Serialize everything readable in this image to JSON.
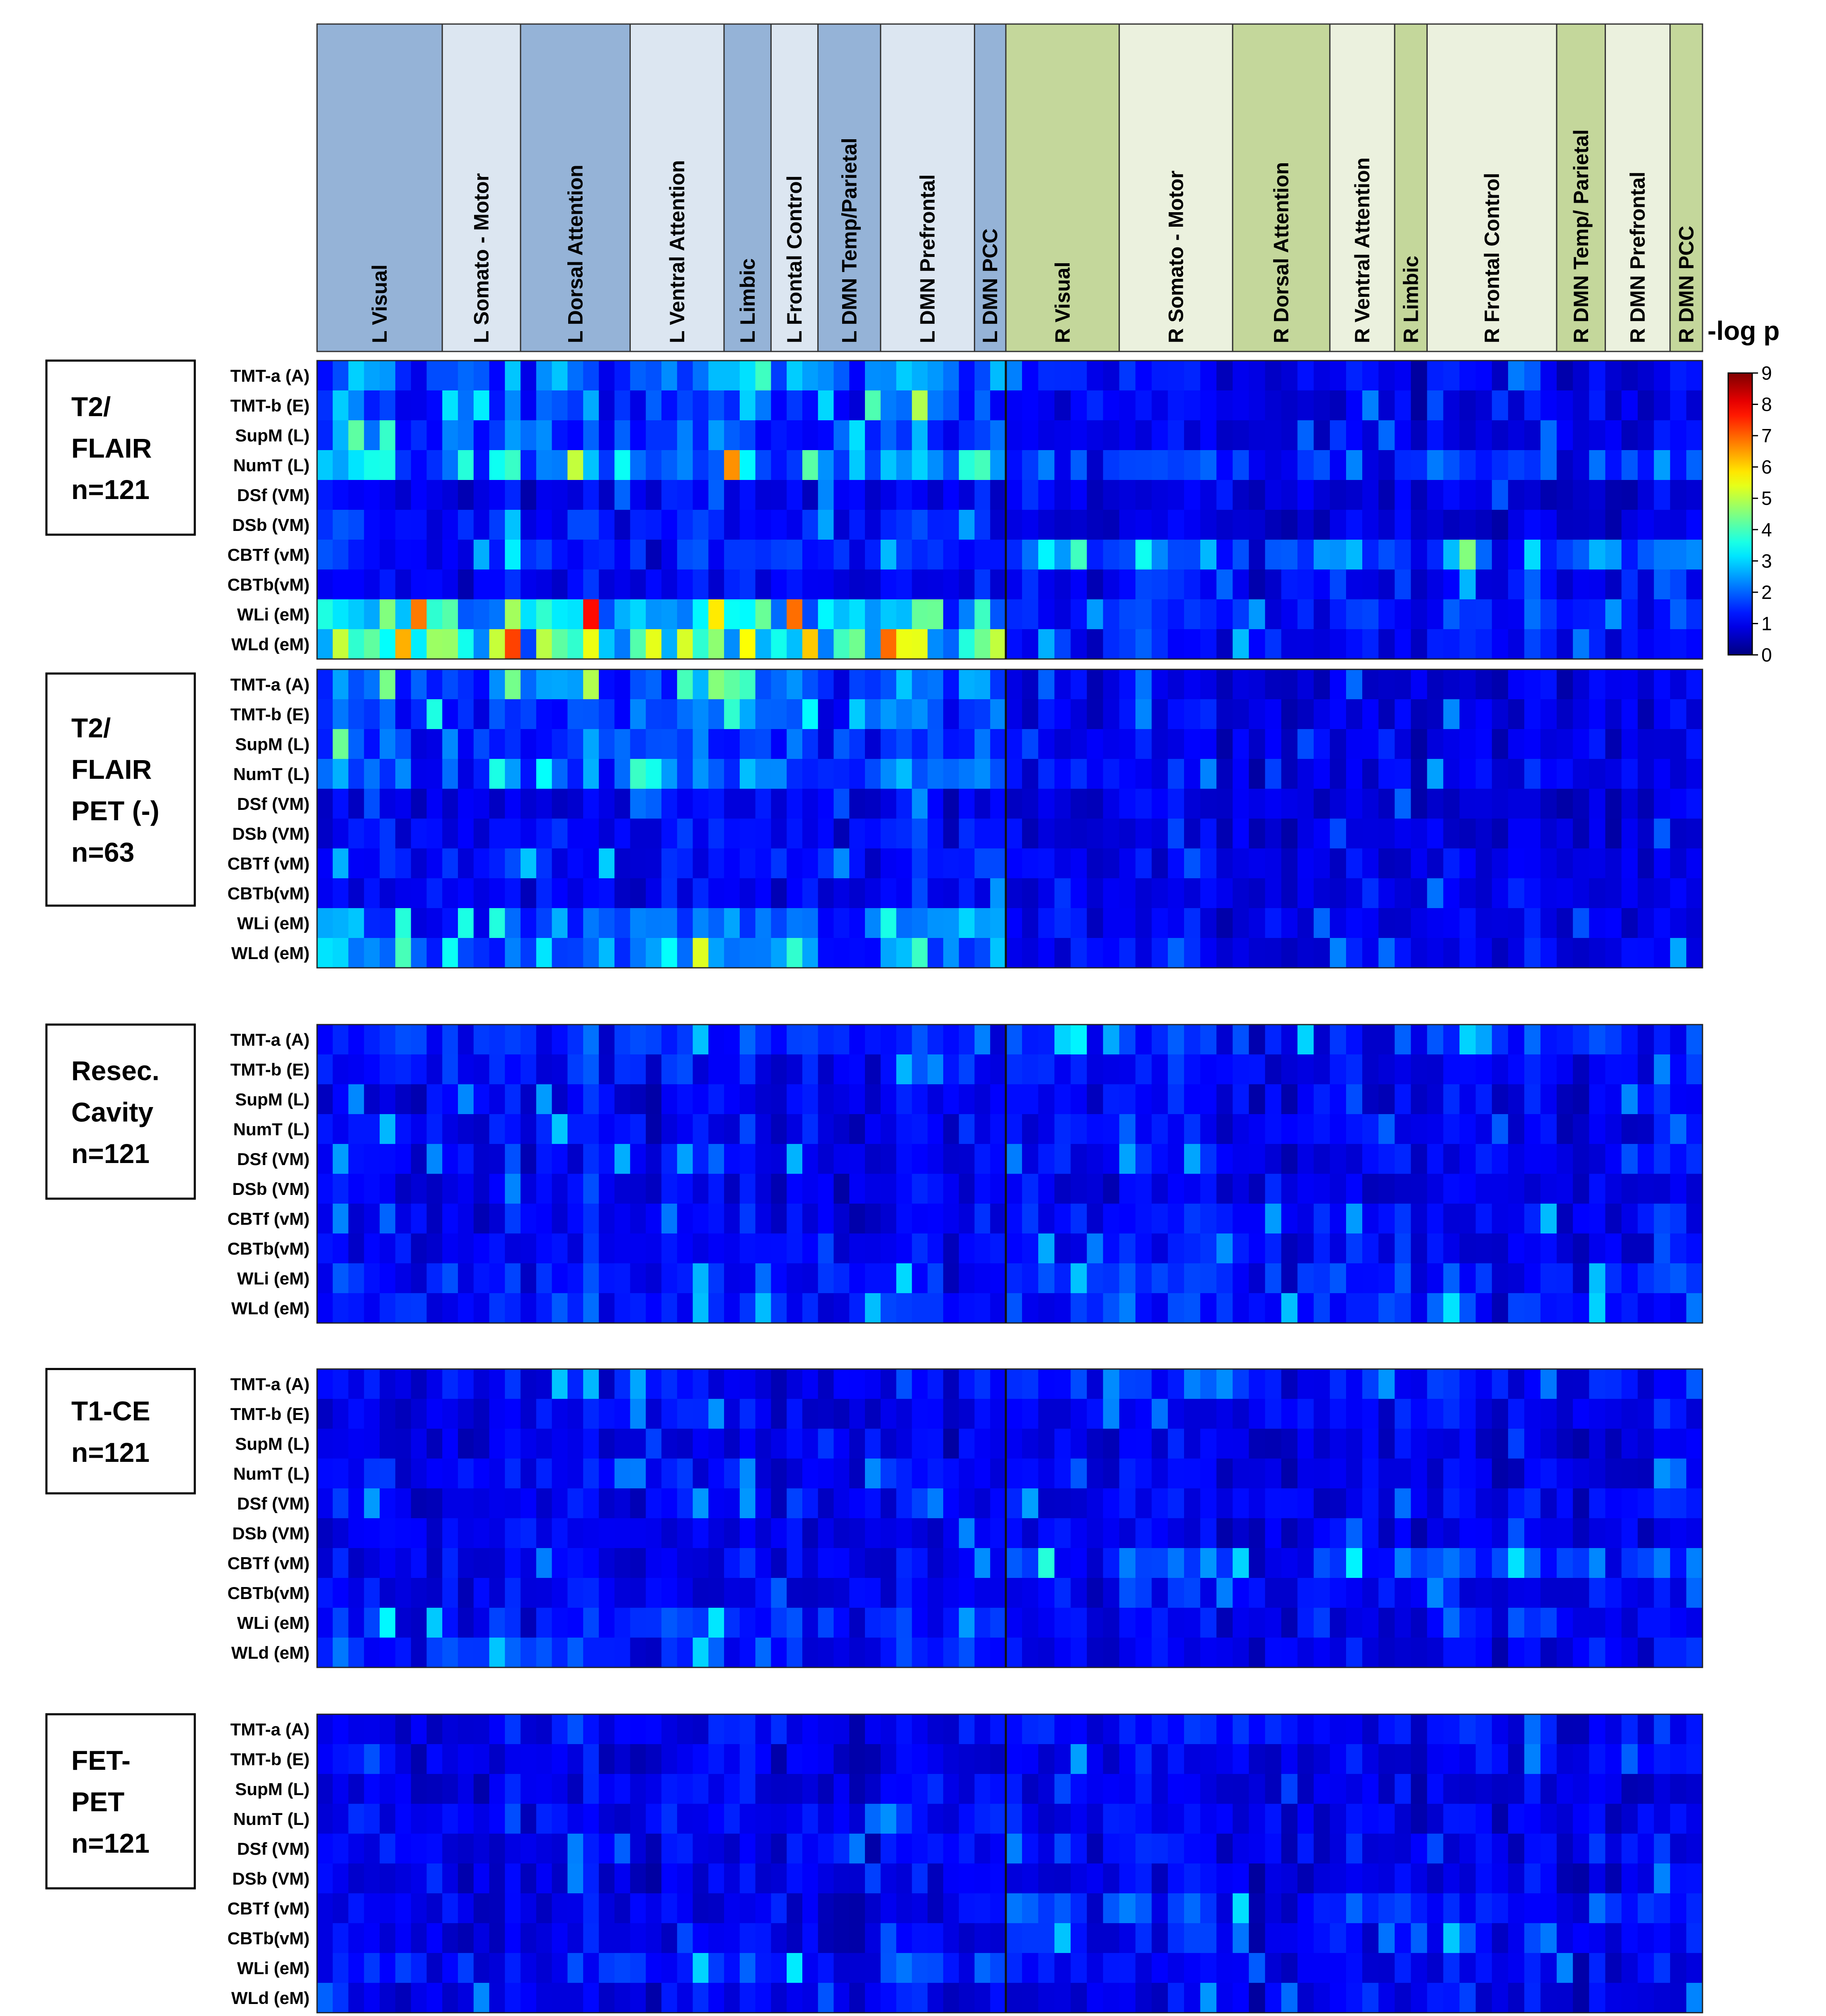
{
  "chart_data": {
    "type": "heatmap",
    "title": "",
    "value_label": "-log p",
    "color_scale": {
      "name": "jet",
      "min": 0,
      "max": 9,
      "ticks": [
        "0",
        "1",
        "2",
        "3",
        "4",
        "5",
        "6",
        "7",
        "8",
        "9"
      ]
    },
    "left_networks": [
      {
        "label": "L Visual",
        "shade": "dark",
        "cells": 8
      },
      {
        "label": "L Somato - Motor",
        "shade": "light",
        "cells": 5
      },
      {
        "label": "L Dorsal Attention",
        "shade": "dark",
        "cells": 7
      },
      {
        "label": "L Ventral Attention",
        "shade": "light",
        "cells": 6
      },
      {
        "label": "L Limbic",
        "shade": "dark",
        "cells": 3
      },
      {
        "label": "L Frontal Control",
        "shade": "light",
        "cells": 3
      },
      {
        "label": "L DMN Temp/Parietal",
        "shade": "dark",
        "cells": 4
      },
      {
        "label": "L DMN Prefrontal",
        "shade": "light",
        "cells": 6
      },
      {
        "label": "L DMN PCC",
        "shade": "dark",
        "cells": 2
      }
    ],
    "right_networks": [
      {
        "label": "R Visual",
        "shade": "dark",
        "cells": 7
      },
      {
        "label": "R Somato - Motor",
        "shade": "light",
        "cells": 7
      },
      {
        "label": "R Dorsal Attention",
        "shade": "dark",
        "cells": 6
      },
      {
        "label": "R Ventral Attention",
        "shade": "light",
        "cells": 4
      },
      {
        "label": "R Limbic",
        "shade": "dark",
        "cells": 2
      },
      {
        "label": "R Frontal Control",
        "shade": "light",
        "cells": 8
      },
      {
        "label": "R DMN Temp/ Parietal",
        "shade": "dark",
        "cells": 3
      },
      {
        "label": "R DMN Prefrontal",
        "shade": "light",
        "cells": 4
      },
      {
        "label": "R DMN PCC",
        "shade": "dark",
        "cells": 2
      }
    ],
    "network_colors": {
      "left_dark": "#95b3d7",
      "left_light": "#dce6f1",
      "right_dark": "#c4d79b",
      "right_light": "#ebf1de"
    },
    "rows": [
      "TMT-a (A)",
      "TMT-b (E)",
      "SupM  (L)",
      "NumT  (L)",
      "DSf  (VM)",
      "DSb (VM)",
      "CBTf (vM)",
      "CBTb(vM)",
      "WLi  (eM)",
      "WLd (eM)"
    ],
    "panels": [
      {
        "id": "t2flair",
        "lines": [
          "T2/",
          "FLAIR",
          "n=121"
        ],
        "row_intensity": [
          {
            "left": 2.0,
            "right": 1.0
          },
          {
            "left": 1.8,
            "right": 0.9
          },
          {
            "left": 1.7,
            "right": 0.9
          },
          {
            "left": 2.5,
            "right": 1.5
          },
          {
            "left": 1.0,
            "right": 0.8
          },
          {
            "left": 1.2,
            "right": 0.8
          },
          {
            "left": 1.3,
            "right": 1.9
          },
          {
            "left": 1.0,
            "right": 1.2
          },
          {
            "left": 3.4,
            "right": 1.3
          },
          {
            "left": 3.6,
            "right": 1.2
          }
        ],
        "hotspots": [
          {
            "row": 3,
            "column": 26,
            "value": 6.6
          },
          {
            "row": 3,
            "column": 4,
            "value": 3.6
          },
          {
            "row": 3,
            "column": 9,
            "value": 3.7
          },
          {
            "row": 8,
            "column": 6,
            "value": 6.8
          },
          {
            "row": 8,
            "column": 25,
            "value": 5.8
          },
          {
            "row": 8,
            "column": 30,
            "value": 6.9
          },
          {
            "row": 9,
            "column": 12,
            "value": 7.3
          },
          {
            "row": 9,
            "column": 31,
            "value": 6.1
          },
          {
            "row": 9,
            "column": 21,
            "value": 5.4
          },
          {
            "row": 6,
            "column": 46,
            "value": 3.3
          },
          {
            "row": 6,
            "column": 52,
            "value": 3.5
          }
        ]
      },
      {
        "id": "t2flair_petneg",
        "lines": [
          "T2/",
          "FLAIR",
          "PET (-)",
          "n=63"
        ],
        "row_intensity": [
          {
            "left": 1.9,
            "right": 0.9
          },
          {
            "left": 1.7,
            "right": 0.9
          },
          {
            "left": 1.6,
            "right": 0.9
          },
          {
            "left": 1.8,
            "right": 1.0
          },
          {
            "left": 0.9,
            "right": 0.8
          },
          {
            "left": 1.1,
            "right": 0.8
          },
          {
            "left": 1.3,
            "right": 0.9
          },
          {
            "left": 1.1,
            "right": 0.9
          },
          {
            "left": 2.0,
            "right": 1.0
          },
          {
            "left": 2.3,
            "right": 1.0
          }
        ],
        "hotspots": [
          {
            "row": 0,
            "column": 26,
            "value": 4.2
          },
          {
            "row": 1,
            "column": 26,
            "value": 3.8
          },
          {
            "row": 9,
            "column": 5,
            "value": 4.0
          },
          {
            "row": 9,
            "column": 30,
            "value": 3.8
          },
          {
            "row": 8,
            "column": 9,
            "value": 3.6
          },
          {
            "row": 3,
            "column": 14,
            "value": 3.4
          }
        ]
      },
      {
        "id": "resec",
        "lines": [
          "Resec.",
          "Cavity",
          "n=121"
        ],
        "row_intensity": [
          {
            "left": 1.4,
            "right": 1.3
          },
          {
            "left": 1.2,
            "right": 1.1
          },
          {
            "left": 1.0,
            "right": 1.0
          },
          {
            "left": 1.1,
            "right": 1.0
          },
          {
            "left": 1.1,
            "right": 1.0
          },
          {
            "left": 0.9,
            "right": 0.8
          },
          {
            "left": 1.0,
            "right": 1.1
          },
          {
            "left": 1.0,
            "right": 1.1
          },
          {
            "left": 1.2,
            "right": 1.3
          },
          {
            "left": 1.3,
            "right": 1.4
          }
        ],
        "hotspots": [
          {
            "row": 0,
            "column": 47,
            "value": 3.0
          },
          {
            "row": 9,
            "column": 35,
            "value": 2.8
          },
          {
            "row": 4,
            "column": 30,
            "value": 2.7
          }
        ]
      },
      {
        "id": "t1ce",
        "lines": [
          "T1-CE",
          "n=121"
        ],
        "row_intensity": [
          {
            "left": 1.1,
            "right": 1.2
          },
          {
            "left": 1.0,
            "right": 1.0
          },
          {
            "left": 0.9,
            "right": 0.9
          },
          {
            "left": 1.1,
            "right": 0.9
          },
          {
            "left": 1.0,
            "right": 1.0
          },
          {
            "left": 0.9,
            "right": 0.9
          },
          {
            "left": 1.0,
            "right": 1.5
          },
          {
            "left": 1.0,
            "right": 1.1
          },
          {
            "left": 1.3,
            "right": 1.0
          },
          {
            "left": 1.4,
            "right": 1.0
          }
        ],
        "hotspots": [
          {
            "row": 6,
            "column": 46,
            "value": 3.7
          },
          {
            "row": 6,
            "column": 58,
            "value": 3.0
          },
          {
            "row": 9,
            "column": 24,
            "value": 3.0
          },
          {
            "row": 8,
            "column": 7,
            "value": 2.9
          }
        ]
      },
      {
        "id": "fetpet",
        "lines": [
          "FET-",
          "PET",
          "n=121"
        ],
        "row_intensity": [
          {
            "left": 1.0,
            "right": 1.1
          },
          {
            "left": 0.9,
            "right": 1.0
          },
          {
            "left": 0.9,
            "right": 0.9
          },
          {
            "left": 1.1,
            "right": 1.0
          },
          {
            "left": 1.0,
            "right": 1.0
          },
          {
            "left": 0.9,
            "right": 0.9
          },
          {
            "left": 0.9,
            "right": 1.4
          },
          {
            "left": 0.9,
            "right": 1.1
          },
          {
            "left": 1.3,
            "right": 1.0
          },
          {
            "left": 1.0,
            "right": 0.9
          }
        ],
        "hotspots": [
          {
            "row": 6,
            "column": 58,
            "value": 3.1
          },
          {
            "row": 8,
            "column": 24,
            "value": 3.0
          },
          {
            "row": 8,
            "column": 30,
            "value": 3.2
          }
        ]
      }
    ]
  }
}
